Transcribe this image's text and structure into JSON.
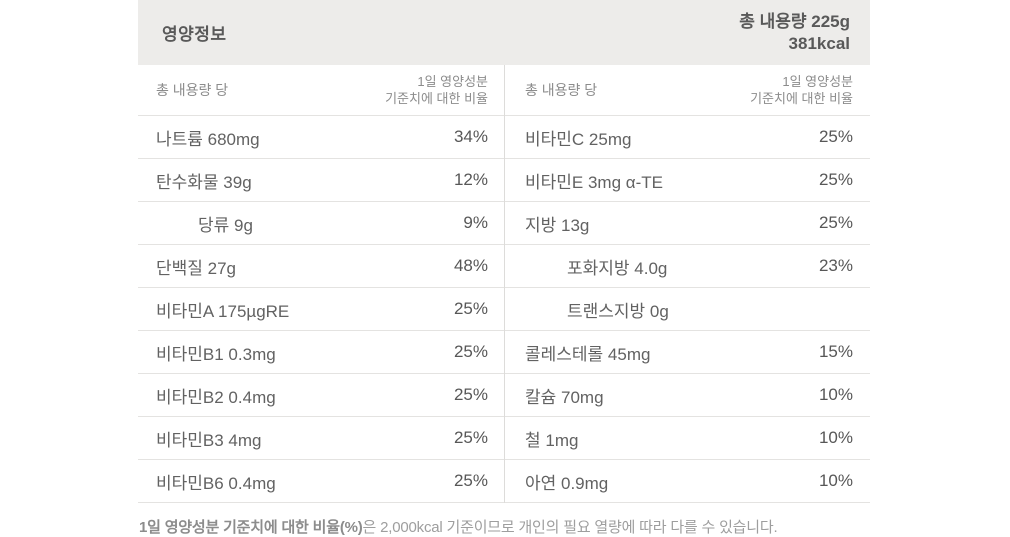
{
  "header": {
    "title": "영양정보",
    "total_amount": "총 내용량 225g",
    "calories": "381kcal"
  },
  "tables": [
    {
      "header": {
        "per_label": "총 내용량 당",
        "dv_line1": "1일 영양성분",
        "dv_line2": "기준치에 대한 비율"
      },
      "rows": [
        {
          "label": "나트륨 680mg",
          "percent": "34%",
          "indent": false
        },
        {
          "label": "탄수화물 39g",
          "percent": "12%",
          "indent": false
        },
        {
          "label": "당류 9g",
          "percent": "9%",
          "indent": true
        },
        {
          "label": "단백질 27g",
          "percent": "48%",
          "indent": false
        },
        {
          "label": "비타민A 175µgRE",
          "percent": "25%",
          "indent": false
        },
        {
          "label": "비타민B1 0.3mg",
          "percent": "25%",
          "indent": false
        },
        {
          "label": "비타민B2 0.4mg",
          "percent": "25%",
          "indent": false
        },
        {
          "label": "비타민B3 4mg",
          "percent": "25%",
          "indent": false
        },
        {
          "label": "비타민B6 0.4mg",
          "percent": "25%",
          "indent": false
        }
      ]
    },
    {
      "header": {
        "per_label": "총 내용량 당",
        "dv_line1": "1일 영양성분",
        "dv_line2": "기준치에 대한 비율"
      },
      "rows": [
        {
          "label": "비타민C 25mg",
          "percent": "25%",
          "indent": false
        },
        {
          "label": "비타민E 3mg α-TE",
          "percent": "25%",
          "indent": false
        },
        {
          "label": "지방 13g",
          "percent": "25%",
          "indent": false
        },
        {
          "label": "포화지방 4.0g",
          "percent": "23%",
          "indent": true
        },
        {
          "label": "트랜스지방 0g",
          "percent": "",
          "indent": true
        },
        {
          "label": "콜레스테롤 45mg",
          "percent": "15%",
          "indent": false
        },
        {
          "label": "칼슘 70mg",
          "percent": "10%",
          "indent": false
        },
        {
          "label": "철 1mg",
          "percent": "10%",
          "indent": false
        },
        {
          "label": "아연 0.9mg",
          "percent": "10%",
          "indent": false
        }
      ]
    }
  ],
  "footnote": {
    "bold": "1일 영양성분 기준치에 대한 비율(%)",
    "rest": "은 2,000kcal 기준이므로 개인의 필요 열량에 따라 다를 수 있습니다."
  },
  "colors": {
    "header_bg": "#edecea",
    "heading_text": "#595959",
    "label_text": "#626262",
    "muted_text": "#8c8c8c",
    "line": "#e4e3e1"
  }
}
